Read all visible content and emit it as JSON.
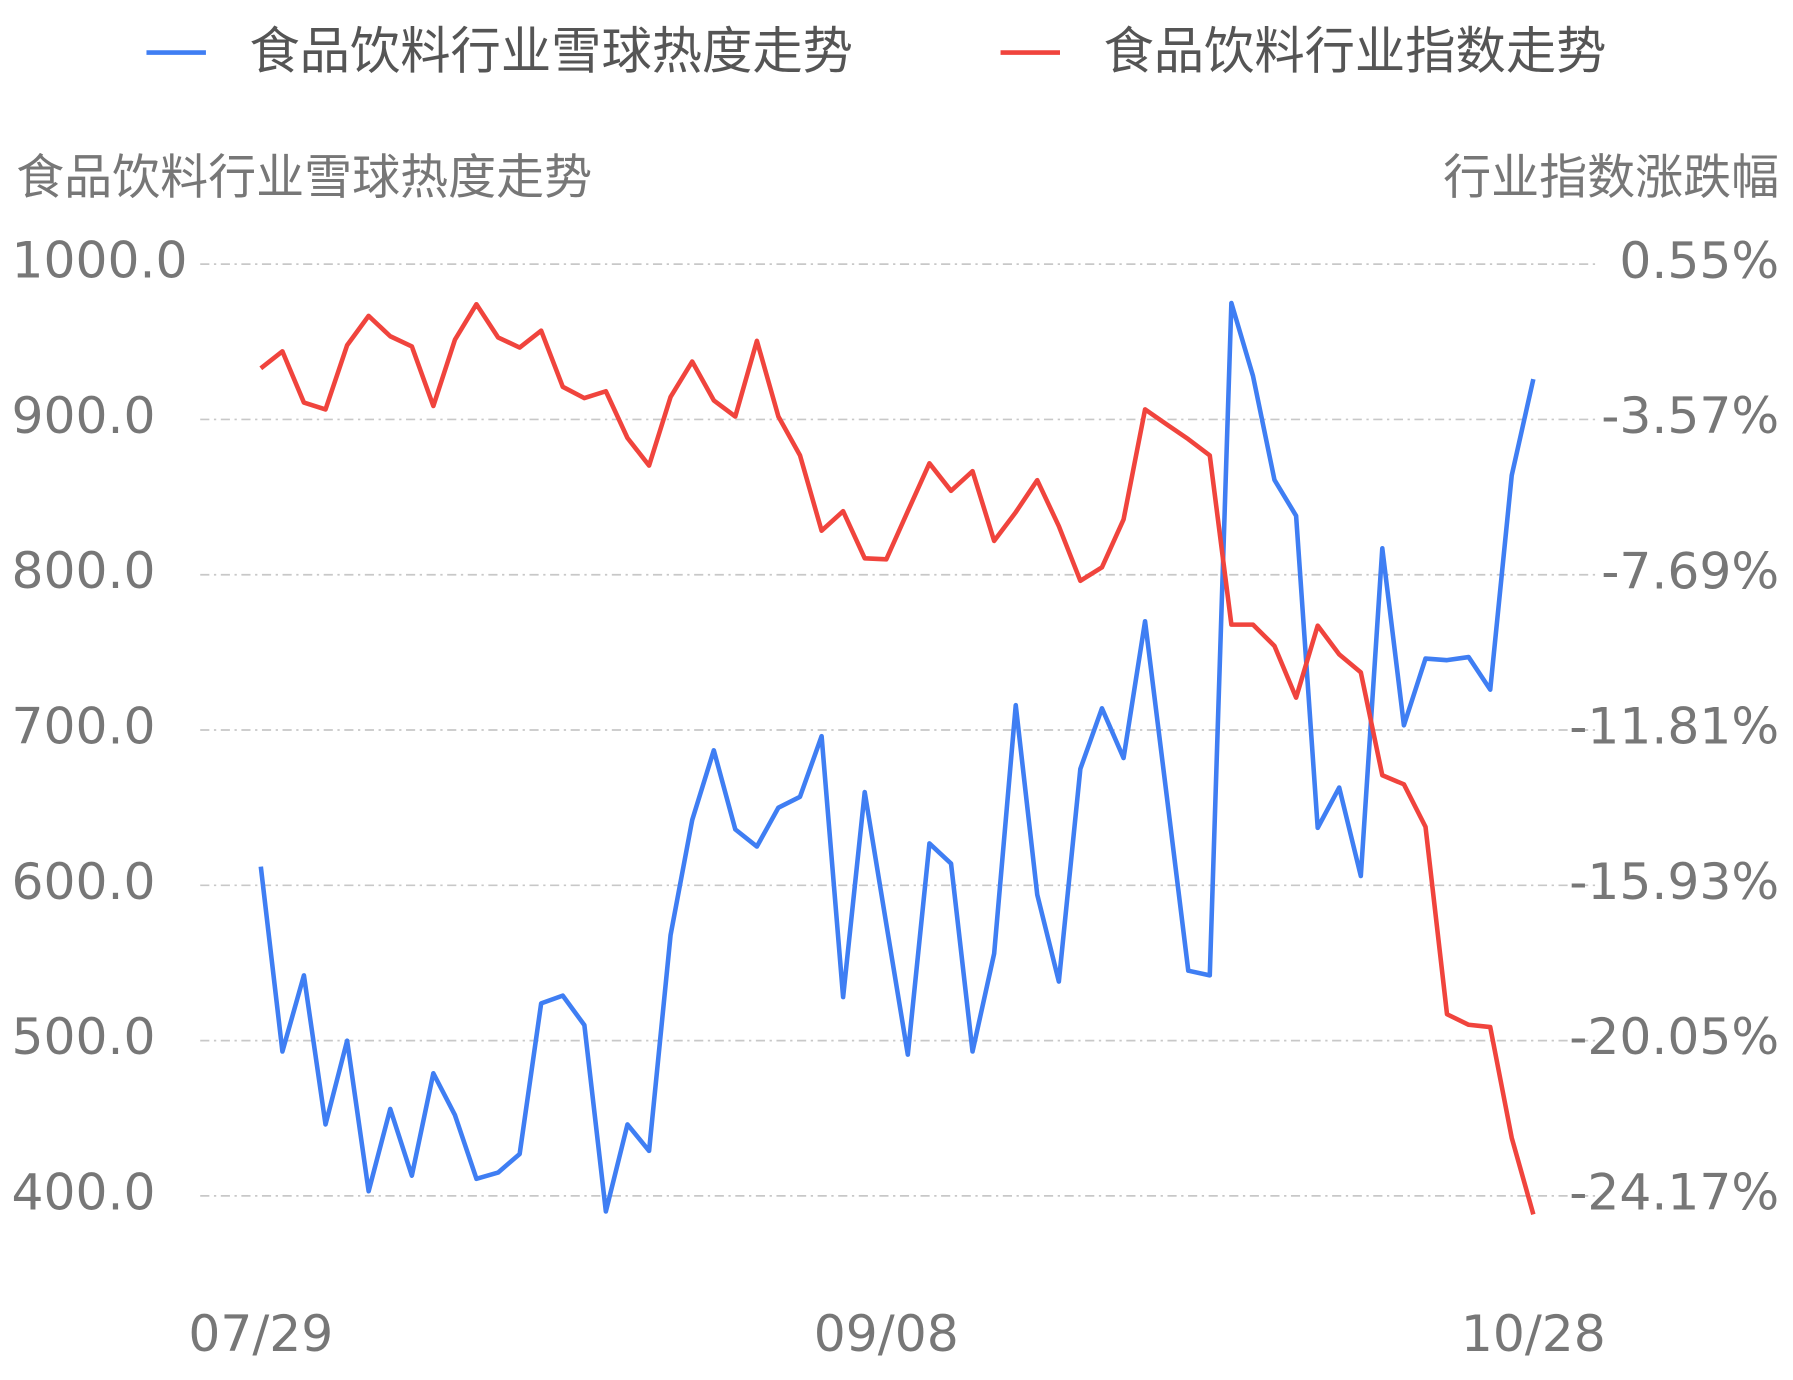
{
  "chart_data": {
    "type": "line",
    "y_axis_label": "食品饮料行业雪球热度走势",
    "y2_axis_label": "行业指数涨跌幅",
    "categories": [
      "07/29",
      null,
      null,
      null,
      null,
      null,
      null,
      null,
      null,
      null,
      null,
      null,
      null,
      null,
      null,
      null,
      null,
      null,
      null,
      null,
      null,
      null,
      null,
      null,
      null,
      null,
      null,
      null,
      null,
      "09/08",
      null,
      null,
      null,
      null,
      null,
      null,
      null,
      null,
      null,
      null,
      null,
      null,
      null,
      null,
      null,
      null,
      null,
      null,
      null,
      null,
      null,
      null,
      null,
      null,
      null,
      null,
      null,
      null,
      null,
      "10/28"
    ],
    "series": [
      {
        "name": "食品饮料行业雪球热度走势",
        "color": "#3f7ef3",
        "axis": "y",
        "values": [
          612,
          493,
          542,
          446,
          500,
          403,
          456,
          413,
          479,
          452,
          411,
          415,
          427,
          524,
          529,
          510,
          390,
          446,
          429,
          568,
          642,
          687,
          636,
          625,
          650,
          657,
          696,
          528,
          660,
          575,
          491,
          627,
          614,
          493,
          556,
          716,
          594,
          538,
          675,
          714,
          682,
          770,
          658,
          545,
          542,
          975,
          928,
          861,
          838,
          637,
          663,
          606,
          817,
          703,
          746,
          745,
          747,
          726,
          864,
          926
        ]
      },
      {
        "name": "食品饮料行业指数走势",
        "color": "#f0443d",
        "axis": "y2",
        "values": [
          -2.21,
          -1.76,
          -3.12,
          -3.3,
          -1.6,
          -0.82,
          -1.36,
          -1.63,
          -3.21,
          -1.45,
          -0.51,
          -1.39,
          -1.66,
          -1.21,
          -2.7,
          -3.0,
          -2.82,
          -4.06,
          -4.79,
          -2.97,
          -2.03,
          -3.06,
          -3.49,
          -1.48,
          -3.49,
          -4.52,
          -6.52,
          -6.0,
          -7.25,
          -7.28,
          -6.0,
          -4.73,
          -5.46,
          -4.94,
          -6.79,
          -6.03,
          -5.18,
          -6.4,
          -7.85,
          -7.49,
          -6.22,
          -3.3,
          -3.7,
          -4.09,
          -4.52,
          -9.01,
          -9.01,
          -9.58,
          -10.95,
          -9.04,
          -9.8,
          -10.28,
          -13.01,
          -13.25,
          -14.38,
          -19.35,
          -19.63,
          -19.69,
          -22.63,
          -24.66
        ]
      }
    ],
    "ylim": [
      360,
      1030
    ],
    "yticks": [
      {
        "value": 1000,
        "label": "1000.0"
      },
      {
        "value": 900,
        "label": "900.0"
      },
      {
        "value": 800,
        "label": "800.0"
      },
      {
        "value": 700,
        "label": "700.0"
      },
      {
        "value": 600,
        "label": "600.0"
      },
      {
        "value": 500,
        "label": "500.0"
      },
      {
        "value": 400,
        "label": "400.0"
      }
    ],
    "y2lim": [
      -25.82,
      1.79
    ],
    "y2ticks": [
      {
        "value": 0.55,
        "label": "0.55%"
      },
      {
        "value": -3.57,
        "label": "-3.57%"
      },
      {
        "value": -7.69,
        "label": "-7.69%"
      },
      {
        "value": -11.81,
        "label": "-11.81%"
      },
      {
        "value": -15.93,
        "label": "-15.93%"
      },
      {
        "value": -20.05,
        "label": "-20.05%"
      },
      {
        "value": -24.17,
        "label": "-24.17%"
      }
    ],
    "grid": true,
    "legend": "top"
  }
}
